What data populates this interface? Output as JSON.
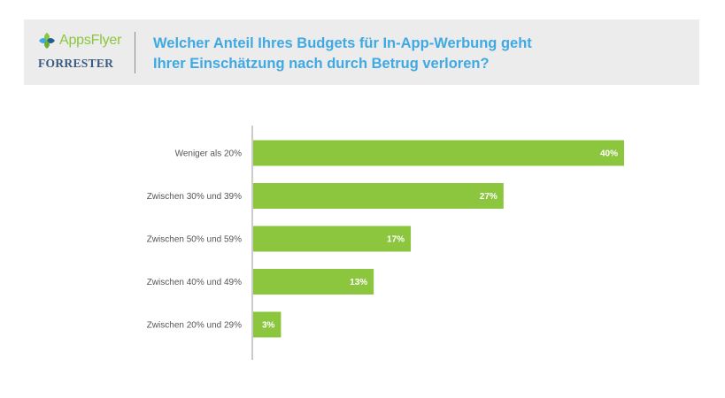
{
  "header": {
    "appsflyer_logo_text": "AppsFlyer",
    "forrester_logo_text": "FORRESTER",
    "title_line1": "Welcher Anteil Ihres Budgets für In-App-Werbung geht",
    "title_line2": "Ihrer Einschätzung nach durch Betrug verloren?"
  },
  "colors": {
    "bar": "#8cc63f",
    "title": "#3fa9e3",
    "axis": "#999999"
  },
  "chart_data": {
    "type": "bar",
    "orientation": "horizontal",
    "title": "Welcher Anteil Ihres Budgets für In-App-Werbung geht Ihrer Einschätzung nach durch Betrug verloren?",
    "categories": [
      "Weniger als 20%",
      "Zwischen 30% und 39%",
      "Zwischen 50% und 59%",
      "Zwischen 40% und 49%",
      "Zwischen 20% und 29%"
    ],
    "values": [
      40,
      27,
      17,
      13,
      3
    ],
    "value_labels": [
      "40%",
      "27%",
      "17%",
      "13%",
      "3%"
    ],
    "value_unit": "%",
    "xlim": [
      0,
      40
    ],
    "grid": false,
    "legend": "none"
  }
}
